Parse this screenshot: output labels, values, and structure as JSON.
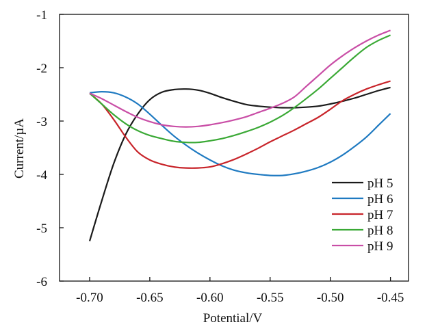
{
  "chart_data": {
    "type": "line",
    "xlabel": "Potential/V",
    "ylabel": "Current/µA",
    "xlim": [
      -0.725,
      -0.435
    ],
    "ylim": [
      -6,
      -1
    ],
    "xticks": [
      -0.7,
      -0.65,
      -0.6,
      -0.55,
      -0.5,
      -0.45
    ],
    "xtick_labels": [
      "-0.70",
      "-0.65",
      "-0.60",
      "-0.55",
      "-0.50",
      "-0.45"
    ],
    "yticks": [
      -6,
      -5,
      -4,
      -3,
      -2,
      -1
    ],
    "ytick_labels": [
      "-6",
      "-5",
      "-4",
      "-3",
      "-2",
      "-1"
    ],
    "grid": false,
    "legend_position": "lower-right",
    "series": [
      {
        "name": "pH 5",
        "color": "#1a1a1a",
        "x": [
          -0.7,
          -0.69,
          -0.68,
          -0.67,
          -0.66,
          -0.65,
          -0.64,
          -0.63,
          -0.62,
          -0.61,
          -0.6,
          -0.59,
          -0.58,
          -0.57,
          -0.56,
          -0.55,
          -0.54,
          -0.53,
          -0.52,
          -0.51,
          -0.5,
          -0.49,
          -0.48,
          -0.47,
          -0.46,
          -0.45
        ],
        "y": [
          -5.25,
          -4.5,
          -3.8,
          -3.25,
          -2.87,
          -2.6,
          -2.46,
          -2.41,
          -2.4,
          -2.42,
          -2.48,
          -2.56,
          -2.63,
          -2.69,
          -2.72,
          -2.74,
          -2.75,
          -2.75,
          -2.74,
          -2.72,
          -2.68,
          -2.63,
          -2.57,
          -2.5,
          -2.43,
          -2.37
        ]
      },
      {
        "name": "pH 6",
        "color": "#1f7ac1",
        "x": [
          -0.7,
          -0.69,
          -0.68,
          -0.67,
          -0.66,
          -0.65,
          -0.64,
          -0.63,
          -0.62,
          -0.61,
          -0.6,
          -0.59,
          -0.58,
          -0.57,
          -0.56,
          -0.55,
          -0.54,
          -0.53,
          -0.52,
          -0.51,
          -0.5,
          -0.49,
          -0.48,
          -0.47,
          -0.46,
          -0.45
        ],
        "y": [
          -2.47,
          -2.45,
          -2.47,
          -2.55,
          -2.68,
          -2.87,
          -3.08,
          -3.28,
          -3.45,
          -3.6,
          -3.73,
          -3.84,
          -3.92,
          -3.97,
          -4.0,
          -4.02,
          -4.02,
          -3.99,
          -3.94,
          -3.87,
          -3.77,
          -3.64,
          -3.48,
          -3.3,
          -3.08,
          -2.86
        ]
      },
      {
        "name": "pH 7",
        "color": "#c8242a",
        "x": [
          -0.7,
          -0.69,
          -0.68,
          -0.67,
          -0.66,
          -0.65,
          -0.64,
          -0.63,
          -0.62,
          -0.61,
          -0.6,
          -0.59,
          -0.58,
          -0.57,
          -0.56,
          -0.55,
          -0.54,
          -0.53,
          -0.52,
          -0.51,
          -0.5,
          -0.49,
          -0.48,
          -0.47,
          -0.46,
          -0.45
        ],
        "y": [
          -2.48,
          -2.68,
          -2.97,
          -3.3,
          -3.58,
          -3.73,
          -3.81,
          -3.86,
          -3.88,
          -3.88,
          -3.86,
          -3.8,
          -3.72,
          -3.62,
          -3.51,
          -3.39,
          -3.28,
          -3.17,
          -3.05,
          -2.93,
          -2.78,
          -2.62,
          -2.5,
          -2.4,
          -2.32,
          -2.25
        ]
      },
      {
        "name": "pH 8",
        "color": "#3aa935",
        "x": [
          -0.7,
          -0.69,
          -0.68,
          -0.67,
          -0.66,
          -0.65,
          -0.64,
          -0.63,
          -0.62,
          -0.61,
          -0.6,
          -0.59,
          -0.58,
          -0.57,
          -0.56,
          -0.55,
          -0.54,
          -0.53,
          -0.52,
          -0.51,
          -0.5,
          -0.49,
          -0.48,
          -0.47,
          -0.46,
          -0.45
        ],
        "y": [
          -2.48,
          -2.68,
          -2.88,
          -3.05,
          -3.18,
          -3.27,
          -3.33,
          -3.38,
          -3.4,
          -3.4,
          -3.37,
          -3.33,
          -3.27,
          -3.2,
          -3.12,
          -3.02,
          -2.9,
          -2.75,
          -2.58,
          -2.4,
          -2.2,
          -2.0,
          -1.8,
          -1.62,
          -1.49,
          -1.39
        ]
      },
      {
        "name": "pH 9",
        "color": "#c94ea6",
        "x": [
          -0.7,
          -0.69,
          -0.68,
          -0.67,
          -0.66,
          -0.65,
          -0.64,
          -0.63,
          -0.62,
          -0.61,
          -0.6,
          -0.59,
          -0.58,
          -0.57,
          -0.56,
          -0.55,
          -0.54,
          -0.53,
          -0.52,
          -0.51,
          -0.5,
          -0.49,
          -0.48,
          -0.47,
          -0.46,
          -0.45
        ],
        "y": [
          -2.48,
          -2.58,
          -2.7,
          -2.82,
          -2.93,
          -3.01,
          -3.07,
          -3.1,
          -3.11,
          -3.1,
          -3.07,
          -3.03,
          -2.98,
          -2.92,
          -2.84,
          -2.76,
          -2.67,
          -2.55,
          -2.35,
          -2.15,
          -1.95,
          -1.78,
          -1.63,
          -1.5,
          -1.39,
          -1.3
        ]
      }
    ]
  }
}
